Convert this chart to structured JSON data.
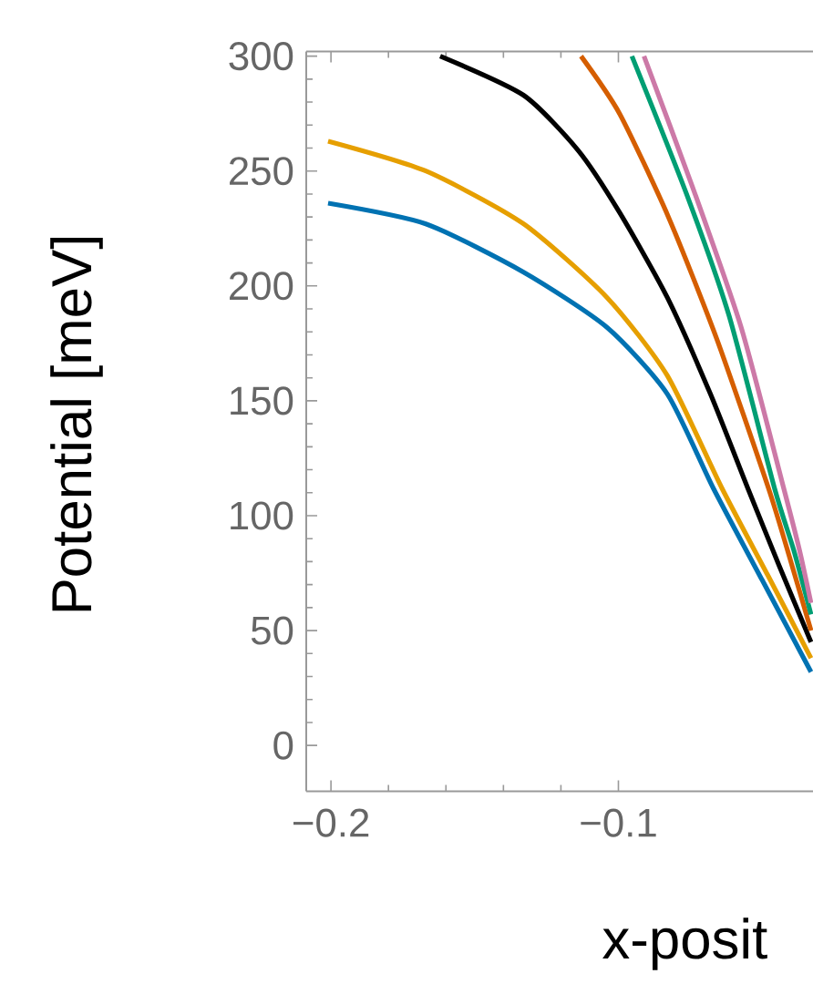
{
  "chart_data": {
    "type": "line",
    "xlabel": "x-posit",
    "ylabel": "Potential  [meV]",
    "xlim": [
      -0.2086,
      -0.0323
    ],
    "ylim": [
      -20,
      302
    ],
    "xticks": [
      {
        "value": -0.2,
        "label": "−0.2"
      },
      {
        "value": -0.1,
        "label": "−0.1"
      }
    ],
    "yticks": [
      0,
      50,
      100,
      150,
      200,
      250,
      300
    ],
    "series": [
      {
        "color": "#0072b2",
        "x": [
          -0.201,
          -0.167,
          -0.133,
          -0.104,
          -0.083,
          -0.067,
          -0.05,
          -0.033
        ],
        "values": [
          236,
          227,
          206,
          182,
          153,
          112,
          72,
          32
        ]
      },
      {
        "color": "#e69f00",
        "x": [
          -0.201,
          -0.167,
          -0.133,
          -0.104,
          -0.083,
          -0.064,
          -0.048,
          -0.033
        ],
        "values": [
          263,
          250,
          227,
          195,
          161,
          112,
          74,
          38
        ]
      },
      {
        "color": "#000000",
        "x": [
          -0.162,
          -0.133,
          -0.114,
          -0.0996,
          -0.083,
          -0.068,
          -0.055,
          -0.044,
          -0.033
        ],
        "values": [
          300,
          283,
          259,
          232,
          195,
          153,
          112,
          78,
          45
        ]
      },
      {
        "color": "#d55e00",
        "x": [
          -0.113,
          -0.0996,
          -0.0826,
          -0.0658,
          -0.0478,
          -0.04,
          -0.033
        ],
        "values": [
          300,
          275,
          230,
          177,
          112,
          80,
          50
        ]
      },
      {
        "color": "#009e73",
        "x": [
          -0.0953,
          -0.0763,
          -0.0615,
          -0.0457,
          -0.039,
          -0.033
        ],
        "values": [
          300,
          240,
          187,
          112,
          85,
          57
        ]
      },
      {
        "color": "#cc79a7",
        "x": [
          -0.0911,
          -0.0742,
          -0.0573,
          -0.0425,
          -0.037,
          -0.033
        ],
        "values": [
          300,
          243,
          182,
          112,
          85,
          62
        ]
      }
    ]
  }
}
